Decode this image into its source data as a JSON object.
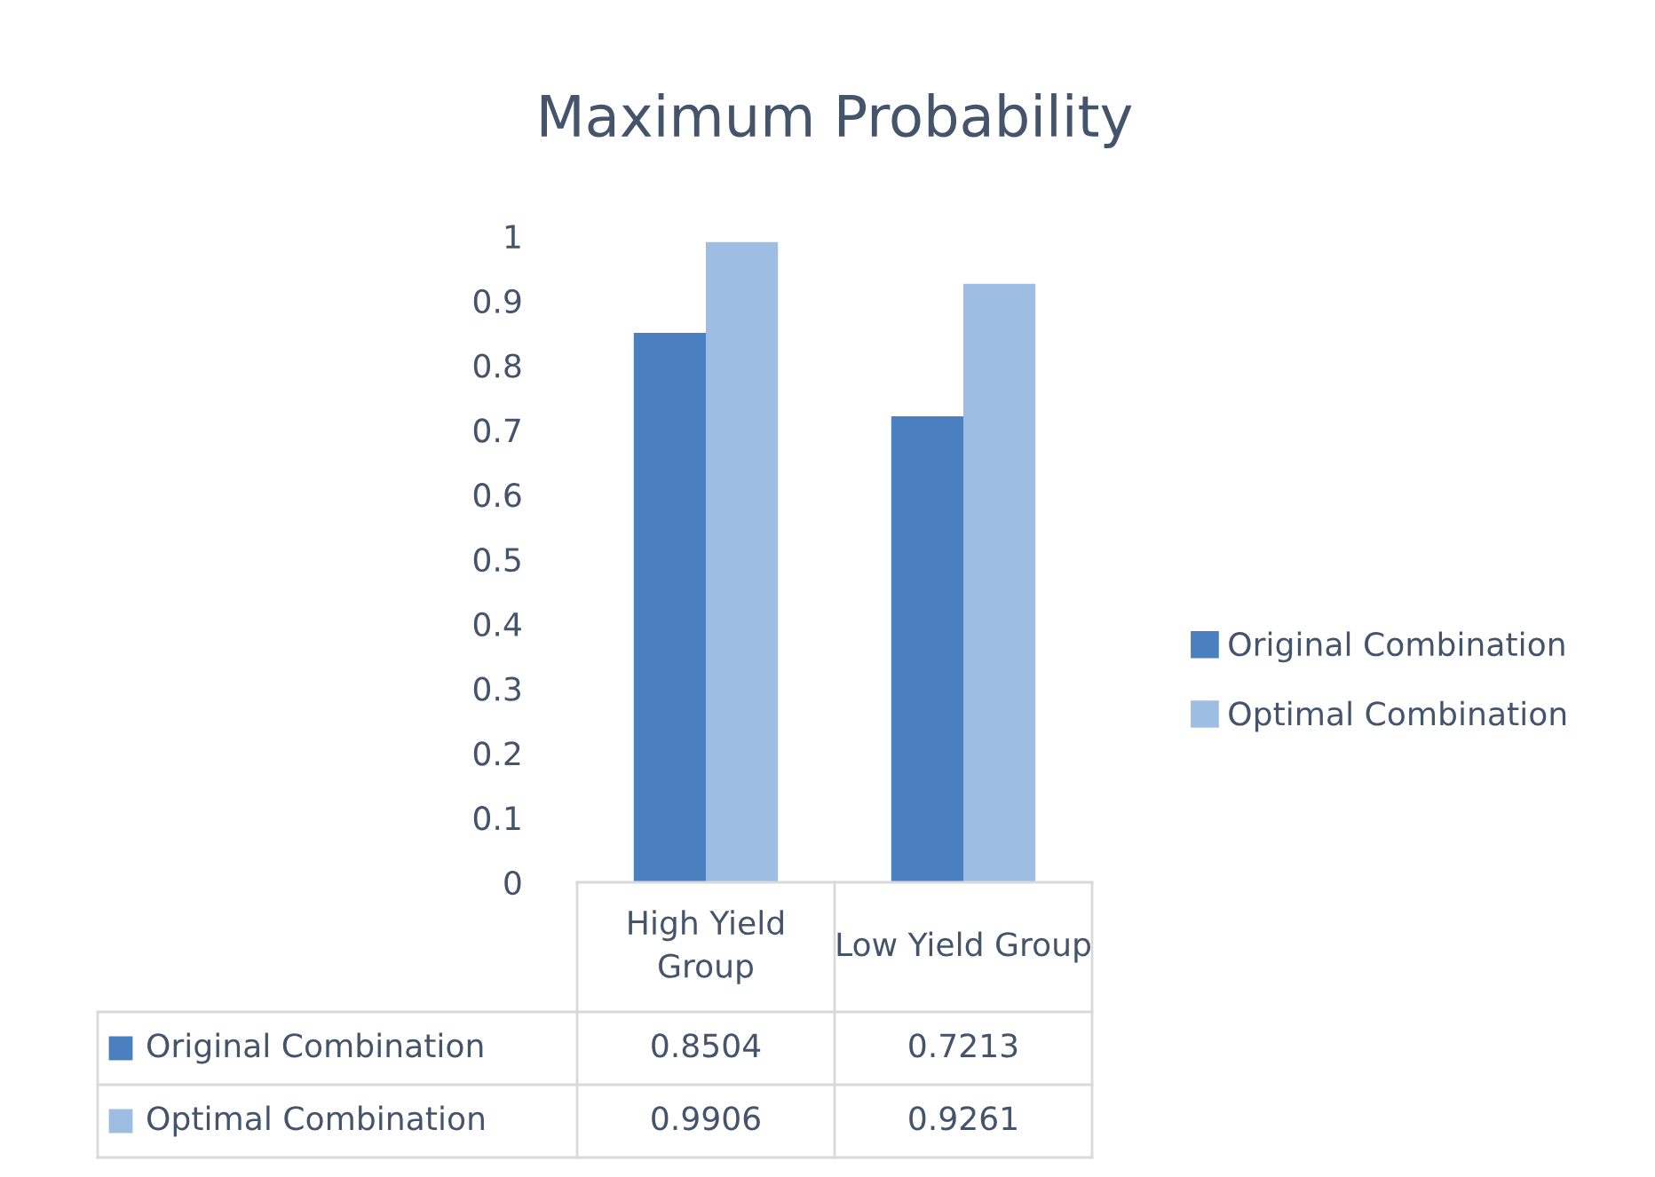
{
  "chart_data": {
    "type": "bar",
    "title": "Maximum Probability",
    "categories": [
      "High Yield Group",
      "Low Yield Group"
    ],
    "series": [
      {
        "name": "Original Combination",
        "color": "#4a80c0",
        "values": [
          0.8504,
          0.7213
        ]
      },
      {
        "name": "Optimal Combination",
        "color": "#9dbde3",
        "values": [
          0.9906,
          0.9261
        ]
      }
    ],
    "ylim": [
      0,
      1
    ],
    "yticks": [
      0,
      0.1,
      0.2,
      0.3,
      0.4,
      0.5,
      0.6,
      0.7,
      0.8,
      0.9,
      1
    ],
    "grid": false,
    "legend": "right",
    "data_labels": true
  }
}
